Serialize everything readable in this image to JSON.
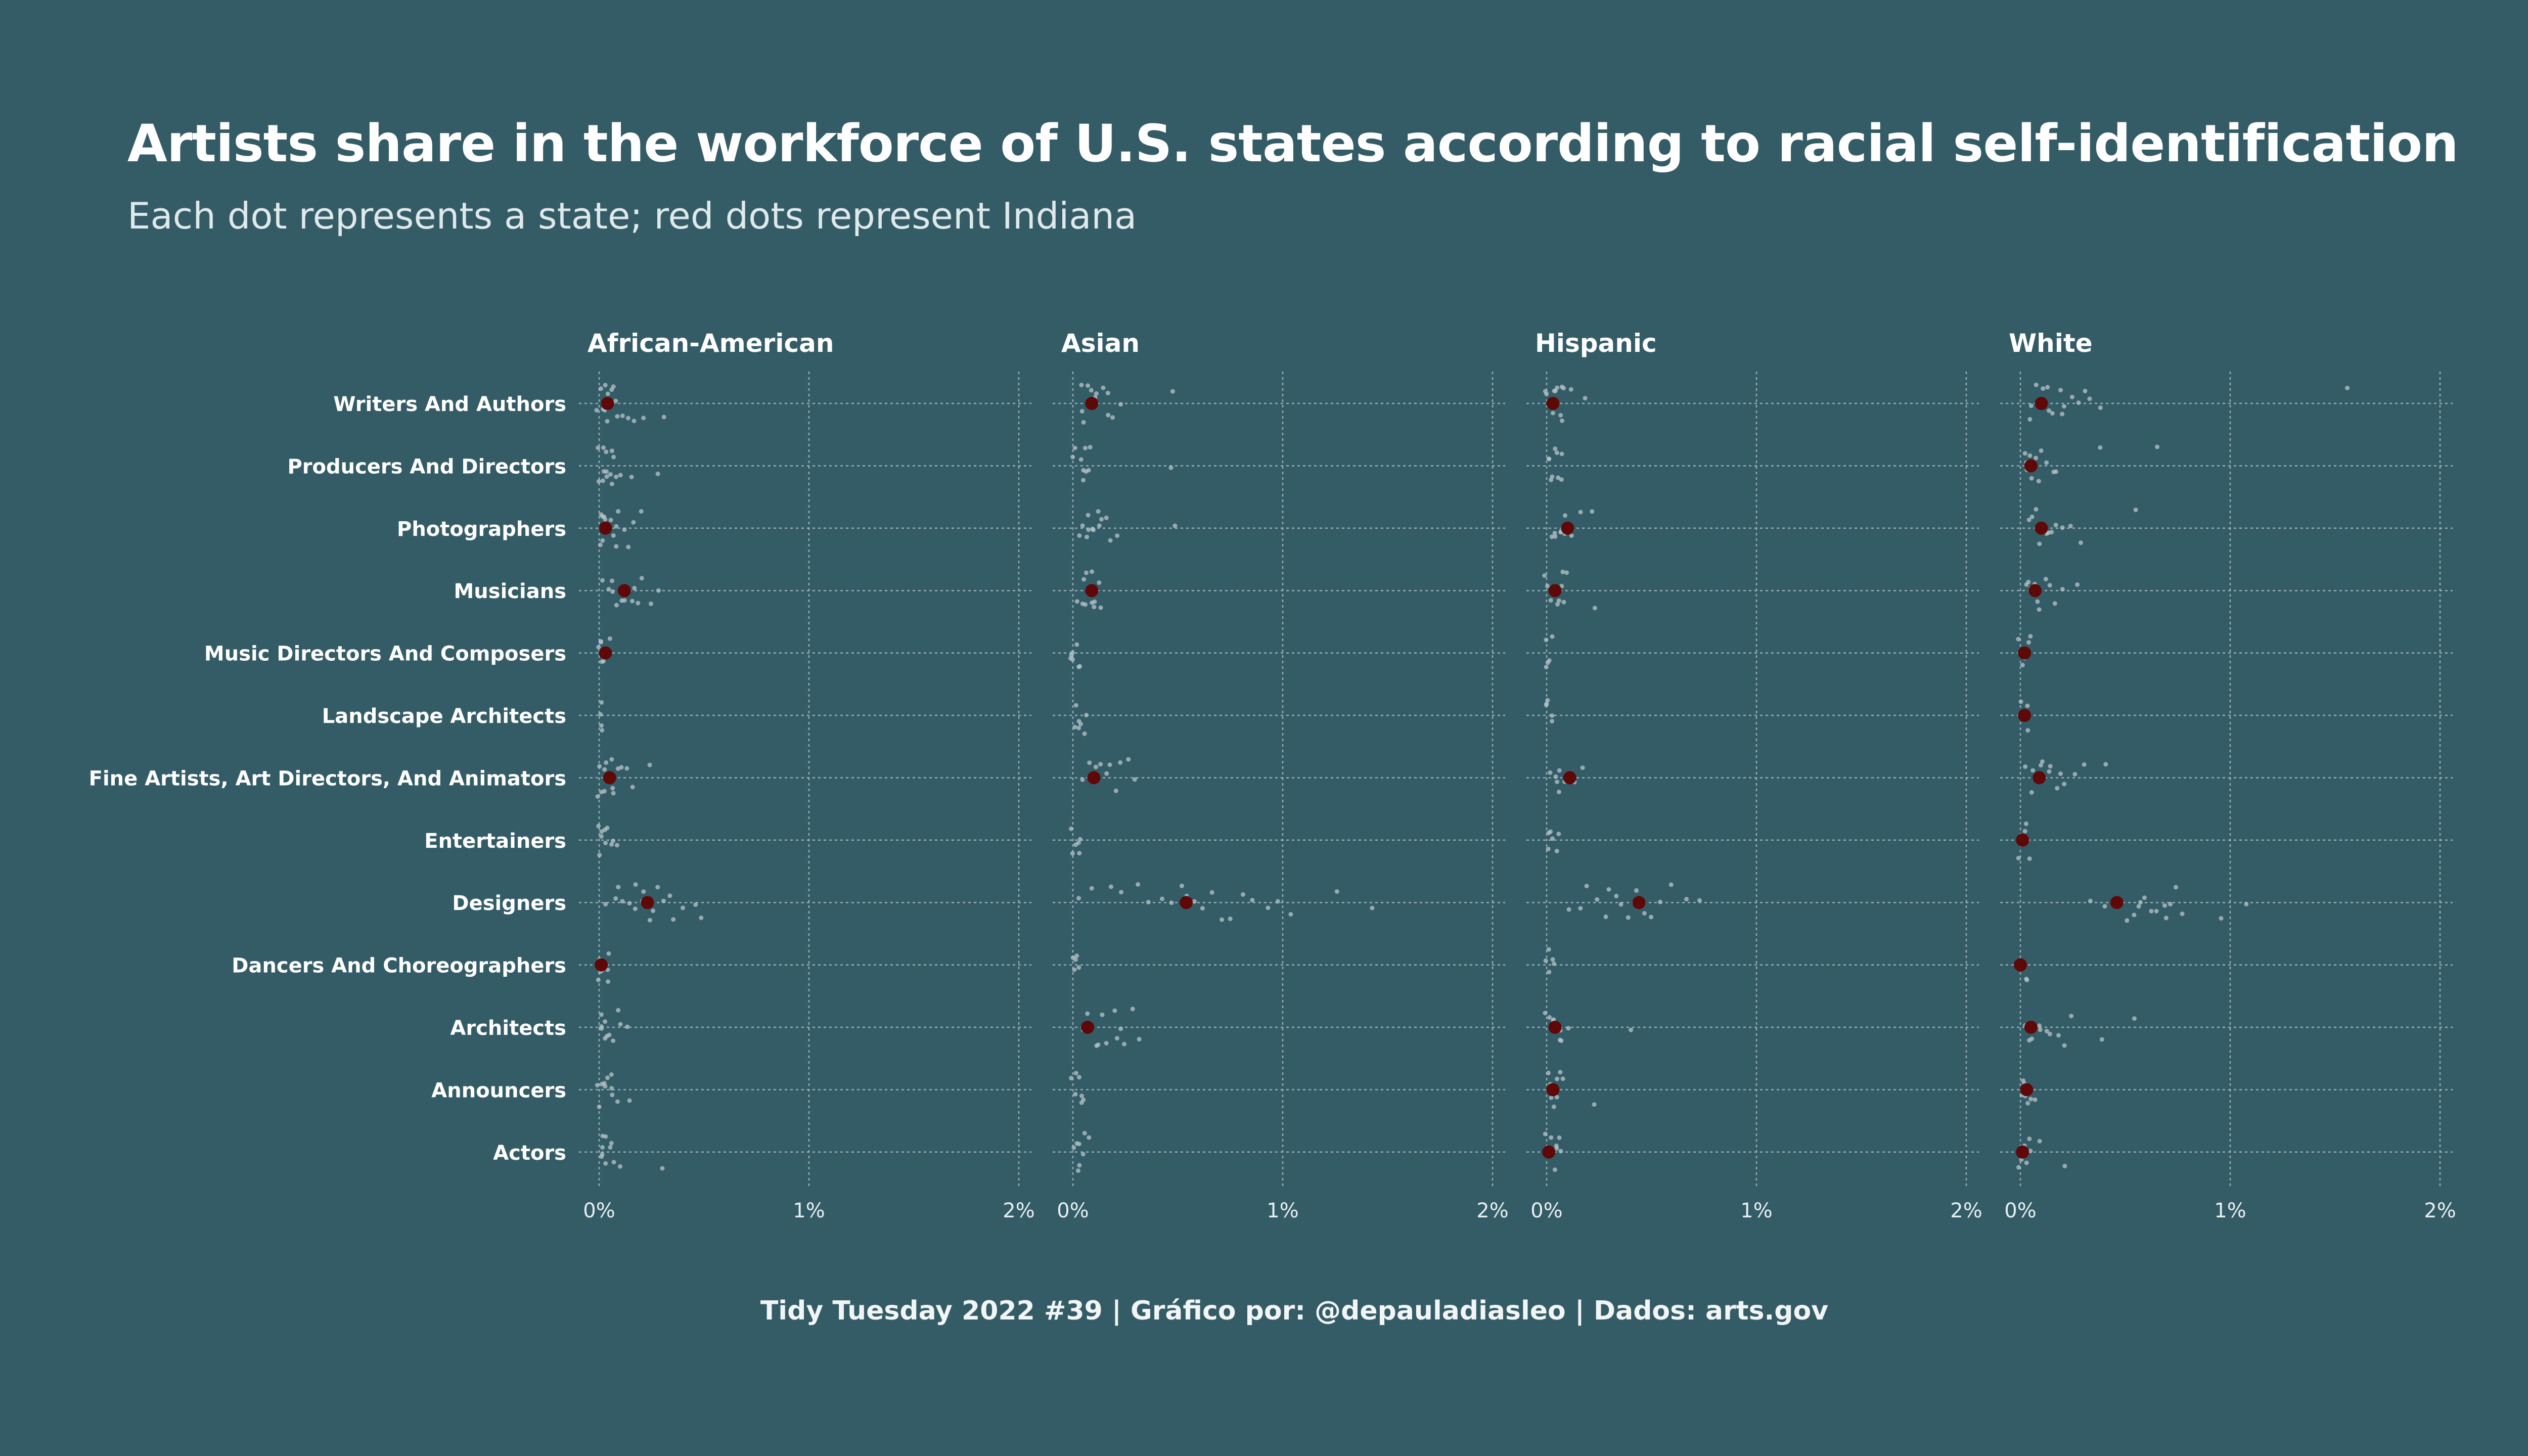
{
  "title": "Artists share in the workforce of U.S. states according to racial self-identification",
  "subtitle": "Each dot represents a state; red dots represent Indiana",
  "caption": "Tidy Tuesday 2022 #39 | Gráfico por: @depauladiasleo | Dados: arts.gov",
  "colors": {
    "background": "#345c67",
    "state_dot": "#b7c4c8",
    "indiana_dot": "#5e0808",
    "grid": "#a9bcc1",
    "text": "#ffffff"
  },
  "chart_data": {
    "type": "scatter",
    "xlim": [
      0,
      2.0
    ],
    "x_unit": "%",
    "x_ticks": [
      0,
      1,
      2
    ],
    "x_tick_labels": [
      "0%",
      "1%",
      "2%"
    ],
    "grid": true,
    "categories": [
      "Writers And Authors",
      "Producers And Directors",
      "Photographers",
      "Musicians",
      "Music Directors And Composers",
      "Landscape Architects",
      "Fine Artists, Art Directors, And Animators",
      "Entertainers",
      "Designers",
      "Dancers And Choreographers",
      "Architects",
      "Announcers",
      "Actors"
    ],
    "panels": [
      {
        "name": "African-American",
        "indiana": [
          0.04,
          null,
          0.03,
          0.12,
          0.03,
          null,
          0.05,
          null,
          0.23,
          0.01,
          null,
          null,
          null
        ],
        "states": [
          [
            0.0,
            0.01,
            0.02,
            0.02,
            0.03,
            0.03,
            0.04,
            0.04,
            0.05,
            0.05,
            0.06,
            0.07,
            0.08,
            0.09,
            0.11,
            0.14,
            0.17,
            0.21,
            0.32
          ],
          [
            0.0,
            0.01,
            0.01,
            0.02,
            0.02,
            0.03,
            0.03,
            0.04,
            0.05,
            0.05,
            0.06,
            0.07,
            0.08,
            0.1,
            0.15,
            0.27
          ],
          [
            0.0,
            0.01,
            0.02,
            0.02,
            0.03,
            0.04,
            0.05,
            0.06,
            0.07,
            0.08,
            0.09,
            0.11,
            0.13,
            0.16,
            0.2
          ],
          [
            0.02,
            0.04,
            0.06,
            0.07,
            0.08,
            0.1,
            0.11,
            0.12,
            0.13,
            0.15,
            0.17,
            0.19,
            0.21,
            0.24,
            0.28
          ],
          [
            0.0,
            0.0,
            0.01,
            0.01,
            0.02,
            0.02,
            0.03,
            0.04,
            0.05
          ],
          [
            0.0,
            0.0,
            0.01,
            0.01
          ],
          [
            0.0,
            0.01,
            0.02,
            0.02,
            0.03,
            0.04,
            0.05,
            0.06,
            0.07,
            0.08,
            0.1,
            0.13,
            0.17,
            0.24
          ],
          [
            0.0,
            0.0,
            0.01,
            0.01,
            0.02,
            0.03,
            0.04,
            0.05,
            0.06,
            0.08
          ],
          [
            0.03,
            0.07,
            0.1,
            0.12,
            0.14,
            0.16,
            0.18,
            0.2,
            0.22,
            0.24,
            0.26,
            0.28,
            0.3,
            0.33,
            0.36,
            0.4,
            0.45,
            0.48
          ],
          [
            0.0,
            0.0,
            0.01,
            0.01,
            0.02,
            0.03,
            0.04,
            0.05
          ],
          [
            0.0,
            0.01,
            0.01,
            0.02,
            0.03,
            0.04,
            0.05,
            0.06,
            0.08,
            0.1,
            0.13
          ],
          [
            0.0,
            0.01,
            0.02,
            0.02,
            0.03,
            0.04,
            0.05,
            0.06,
            0.07,
            0.09,
            0.15
          ],
          [
            0.0,
            0.01,
            0.01,
            0.02,
            0.03,
            0.04,
            0.05,
            0.06,
            0.07,
            0.1,
            0.3
          ]
        ]
      },
      {
        "name": "Asian",
        "indiana": [
          0.09,
          null,
          null,
          0.09,
          null,
          null,
          0.1,
          null,
          0.54,
          null,
          0.07,
          null,
          null
        ],
        "states": [
          [
            0.04,
            0.05,
            0.06,
            0.07,
            0.08,
            0.09,
            0.1,
            0.11,
            0.12,
            0.14,
            0.16,
            0.18,
            0.2,
            0.23,
            0.48
          ],
          [
            0.0,
            0.02,
            0.03,
            0.04,
            0.05,
            0.06,
            0.07,
            0.08,
            0.09,
            0.47
          ],
          [
            0.03,
            0.05,
            0.06,
            0.07,
            0.08,
            0.09,
            0.1,
            0.11,
            0.12,
            0.14,
            0.16,
            0.18,
            0.2,
            0.49
          ],
          [
            0.03,
            0.04,
            0.05,
            0.06,
            0.07,
            0.08,
            0.09,
            0.1,
            0.11,
            0.12,
            0.13
          ],
          [
            0.0,
            0.0,
            0.01,
            0.01,
            0.02,
            0.02,
            0.03
          ],
          [
            0.0,
            0.01,
            0.02,
            0.03,
            0.04,
            0.05,
            0.06
          ],
          [
            0.05,
            0.07,
            0.09,
            0.1,
            0.12,
            0.14,
            0.16,
            0.18,
            0.2,
            0.23,
            0.26,
            0.3
          ],
          [
            0.0,
            0.01,
            0.01,
            0.02,
            0.03,
            0.04
          ],
          [
            0.03,
            0.1,
            0.18,
            0.22,
            0.3,
            0.37,
            0.42,
            0.47,
            0.52,
            0.55,
            0.58,
            0.62,
            0.66,
            0.7,
            0.75,
            0.8,
            0.86,
            0.92,
            0.98,
            1.05,
            1.25,
            1.42
          ],
          [
            0.0,
            0.0,
            0.01,
            0.02,
            0.03
          ],
          [
            0.04,
            0.08,
            0.11,
            0.13,
            0.15,
            0.17,
            0.19,
            0.21,
            0.23,
            0.25,
            0.28,
            0.31
          ],
          [
            0.0,
            0.01,
            0.02,
            0.03,
            0.04,
            0.05,
            0.06
          ],
          [
            0.0,
            0.01,
            0.02,
            0.03,
            0.04,
            0.05,
            0.06,
            0.08
          ]
        ]
      },
      {
        "name": "Hispanic",
        "indiana": [
          0.03,
          null,
          0.1,
          0.04,
          null,
          null,
          0.11,
          null,
          0.44,
          null,
          0.04,
          0.03,
          0.01
        ],
        "states": [
          [
            0.0,
            0.01,
            0.02,
            0.03,
            0.04,
            0.05,
            0.06,
            0.07,
            0.08,
            0.09,
            0.11,
            0.18
          ],
          [
            0.0,
            0.01,
            0.02,
            0.03,
            0.04,
            0.05,
            0.06,
            0.07,
            0.08
          ],
          [
            0.02,
            0.04,
            0.05,
            0.06,
            0.07,
            0.08,
            0.09,
            0.11,
            0.13,
            0.15,
            0.22
          ],
          [
            0.0,
            0.01,
            0.02,
            0.03,
            0.04,
            0.05,
            0.06,
            0.07,
            0.08,
            0.1,
            0.23
          ],
          [
            0.0,
            0.0,
            0.01,
            0.01,
            0.02
          ],
          [
            0.0,
            0.0,
            0.01,
            0.02,
            0.03
          ],
          [
            0.02,
            0.04,
            0.05,
            0.06,
            0.07,
            0.08,
            0.1,
            0.12,
            0.14,
            0.17
          ],
          [
            0.0,
            0.01,
            0.02,
            0.03,
            0.04,
            0.05
          ],
          [
            0.1,
            0.16,
            0.2,
            0.24,
            0.27,
            0.3,
            0.33,
            0.36,
            0.39,
            0.42,
            0.46,
            0.5,
            0.55,
            0.6,
            0.66,
            0.72
          ],
          [
            0.0,
            0.01,
            0.02,
            0.03,
            0.04
          ],
          [
            0.0,
            0.02,
            0.03,
            0.04,
            0.05,
            0.06,
            0.07,
            0.08,
            0.1,
            0.4
          ],
          [
            0.0,
            0.01,
            0.02,
            0.03,
            0.04,
            0.05,
            0.06,
            0.08,
            0.22
          ],
          [
            0.0,
            0.01,
            0.02,
            0.03,
            0.04,
            0.05,
            0.06,
            0.07
          ]
        ]
      },
      {
        "name": "White",
        "indiana": [
          0.1,
          0.05,
          0.1,
          0.07,
          0.02,
          0.02,
          0.09,
          0.01,
          0.46,
          0.0,
          0.05,
          0.03,
          0.01
        ],
        "states": [
          [
            0.04,
            0.06,
            0.08,
            0.1,
            0.12,
            0.14,
            0.16,
            0.18,
            0.2,
            0.22,
            0.25,
            0.28,
            0.31,
            0.34,
            0.38,
            1.55
          ],
          [
            0.02,
            0.03,
            0.04,
            0.05,
            0.06,
            0.07,
            0.08,
            0.1,
            0.12,
            0.15,
            0.18,
            0.38,
            0.65
          ],
          [
            0.04,
            0.06,
            0.08,
            0.1,
            0.12,
            0.14,
            0.16,
            0.18,
            0.21,
            0.25,
            0.28,
            0.56
          ],
          [
            0.03,
            0.05,
            0.06,
            0.08,
            0.09,
            0.1,
            0.12,
            0.14,
            0.16,
            0.2,
            0.28
          ],
          [
            0.0,
            0.01,
            0.02,
            0.03,
            0.04
          ],
          [
            0.0,
            0.01,
            0.02,
            0.03,
            0.04
          ],
          [
            0.03,
            0.05,
            0.07,
            0.09,
            0.11,
            0.13,
            0.15,
            0.17,
            0.19,
            0.22,
            0.25,
            0.3,
            0.4
          ],
          [
            0.0,
            0.01,
            0.02,
            0.03,
            0.04
          ],
          [
            0.33,
            0.4,
            0.45,
            0.5,
            0.53,
            0.56,
            0.58,
            0.6,
            0.62,
            0.65,
            0.68,
            0.7,
            0.72,
            0.75,
            0.78,
            0.95,
            1.08
          ],
          [
            0.0,
            0.01,
            0.02,
            0.03
          ],
          [
            0.02,
            0.04,
            0.06,
            0.08,
            0.1,
            0.12,
            0.14,
            0.17,
            0.2,
            0.24,
            0.4,
            0.55
          ],
          [
            0.0,
            0.01,
            0.02,
            0.03,
            0.04,
            0.05,
            0.06
          ],
          [
            0.0,
            0.01,
            0.02,
            0.03,
            0.04,
            0.05,
            0.08,
            0.2
          ]
        ]
      }
    ]
  }
}
